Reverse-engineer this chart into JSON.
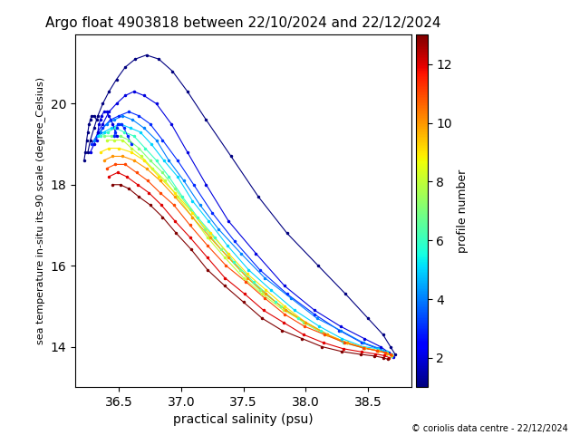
{
  "title": "Argo float 4903818 between 22/10/2024 and 22/12/2024",
  "xlabel": "practical salinity (psu)",
  "ylabel": "sea temperature in-situ its-90 scale (degree_Celsius)",
  "colorbar_label": "profile number",
  "colorbar_ticks": [
    2,
    4,
    6,
    8,
    10,
    12
  ],
  "n_profiles": 13,
  "cmap": "jet",
  "vmin": 1,
  "vmax": 13,
  "xlim": [
    36.15,
    38.85
  ],
  "ylim": [
    13.0,
    21.7
  ],
  "xticks": [
    36.5,
    37.0,
    37.5,
    38.0,
    38.5
  ],
  "yticks": [
    14,
    16,
    18,
    20
  ],
  "copyright": "© coriolis data centre - 22/12/2024",
  "profiles": [
    {
      "num": 1,
      "sal": [
        36.25,
        36.27,
        36.3,
        36.33,
        36.37,
        36.42,
        36.48,
        36.55,
        36.63,
        36.72,
        36.82,
        36.93,
        37.05,
        37.2,
        37.4,
        37.62,
        37.85,
        38.1,
        38.32,
        38.5,
        38.62,
        38.68,
        38.72
      ],
      "temp": [
        18.8,
        19.1,
        19.4,
        19.7,
        20.0,
        20.3,
        20.6,
        20.9,
        21.1,
        21.2,
        21.1,
        20.8,
        20.3,
        19.6,
        18.7,
        17.7,
        16.8,
        16.0,
        15.3,
        14.7,
        14.3,
        14.0,
        13.8
      ]
    },
    {
      "num": 2,
      "sal": [
        36.27,
        36.3,
        36.33,
        36.37,
        36.42,
        36.48,
        36.55,
        36.62,
        36.7,
        36.8,
        36.92,
        37.05,
        37.2,
        37.38,
        37.6,
        37.83,
        38.07,
        38.28,
        38.47,
        38.6,
        38.67,
        38.7
      ],
      "temp": [
        18.8,
        19.0,
        19.3,
        19.5,
        19.8,
        20.0,
        20.2,
        20.3,
        20.2,
        20.0,
        19.5,
        18.8,
        18.0,
        17.1,
        16.3,
        15.5,
        14.9,
        14.5,
        14.2,
        14.0,
        13.85,
        13.75
      ]
    },
    {
      "num": 3,
      "sal": [
        36.28,
        36.32,
        36.37,
        36.43,
        36.5,
        36.58,
        36.66,
        36.75,
        36.85,
        36.97,
        37.1,
        37.25,
        37.43,
        37.63,
        37.85,
        38.07,
        38.27,
        38.45,
        38.58,
        38.65,
        38.69
      ],
      "temp": [
        19.0,
        19.2,
        19.4,
        19.6,
        19.7,
        19.8,
        19.7,
        19.5,
        19.1,
        18.6,
        18.0,
        17.3,
        16.6,
        15.9,
        15.3,
        14.8,
        14.4,
        14.1,
        13.95,
        13.85,
        13.78
      ]
    },
    {
      "num": 4,
      "sal": [
        36.3,
        36.35,
        36.4,
        36.46,
        36.53,
        36.61,
        36.7,
        36.8,
        36.9,
        37.02,
        37.15,
        37.3,
        37.48,
        37.67,
        37.88,
        38.09,
        38.28,
        38.46,
        38.58,
        38.65,
        38.69
      ],
      "temp": [
        19.1,
        19.3,
        19.5,
        19.6,
        19.7,
        19.6,
        19.4,
        19.1,
        18.6,
        18.1,
        17.5,
        16.9,
        16.3,
        15.7,
        15.2,
        14.7,
        14.4,
        14.1,
        13.97,
        13.88,
        13.8
      ]
    },
    {
      "num": 5,
      "sal": [
        36.33,
        36.38,
        36.44,
        36.51,
        36.59,
        36.67,
        36.76,
        36.86,
        36.97,
        37.09,
        37.22,
        37.37,
        37.54,
        37.72,
        37.91,
        38.11,
        38.29,
        38.46,
        38.58,
        38.65,
        38.69
      ],
      "temp": [
        19.2,
        19.3,
        19.4,
        19.5,
        19.4,
        19.3,
        19.0,
        18.6,
        18.2,
        17.6,
        17.1,
        16.5,
        15.9,
        15.4,
        14.9,
        14.5,
        14.2,
        14.0,
        13.95,
        13.87,
        13.8
      ]
    },
    {
      "num": 6,
      "sal": [
        36.35,
        36.41,
        36.47,
        36.54,
        36.62,
        36.71,
        36.8,
        36.9,
        37.01,
        37.13,
        37.27,
        37.42,
        37.58,
        37.76,
        37.94,
        38.12,
        38.3,
        38.46,
        38.58,
        38.65,
        38.69
      ],
      "temp": [
        19.2,
        19.3,
        19.4,
        19.3,
        19.2,
        18.9,
        18.6,
        18.2,
        17.7,
        17.2,
        16.7,
        16.1,
        15.6,
        15.1,
        14.7,
        14.4,
        14.1,
        13.97,
        13.9,
        13.83,
        13.77
      ]
    },
    {
      "num": 7,
      "sal": [
        36.38,
        36.44,
        36.51,
        36.58,
        36.66,
        36.75,
        36.85,
        36.95,
        37.07,
        37.19,
        37.32,
        37.47,
        37.63,
        37.8,
        37.98,
        38.15,
        38.32,
        38.47,
        38.58,
        38.65,
        38.69
      ],
      "temp": [
        19.2,
        19.2,
        19.2,
        19.1,
        18.9,
        18.6,
        18.3,
        17.9,
        17.4,
        16.9,
        16.4,
        15.9,
        15.4,
        15.0,
        14.6,
        14.3,
        14.1,
        13.97,
        13.9,
        13.84,
        13.78
      ]
    },
    {
      "num": 8,
      "sal": [
        36.4,
        36.46,
        36.53,
        36.6,
        36.68,
        36.77,
        36.87,
        36.97,
        37.09,
        37.21,
        37.35,
        37.5,
        37.65,
        37.82,
        38.0,
        38.17,
        38.33,
        38.47,
        38.58,
        38.65,
        38.69
      ],
      "temp": [
        19.1,
        19.1,
        19.1,
        18.9,
        18.7,
        18.4,
        18.1,
        17.7,
        17.2,
        16.7,
        16.2,
        15.7,
        15.3,
        14.9,
        14.6,
        14.3,
        14.1,
        13.97,
        13.9,
        13.84,
        13.78
      ]
    },
    {
      "num": 9,
      "sal": [
        36.35,
        36.42,
        36.5,
        36.6,
        36.7,
        36.82,
        36.95,
        37.09,
        37.23,
        37.38,
        37.53,
        37.68,
        37.83,
        38.0,
        38.17,
        38.33,
        38.47,
        38.58,
        38.65,
        38.69
      ],
      "temp": [
        18.8,
        18.9,
        18.9,
        18.8,
        18.6,
        18.2,
        17.8,
        17.3,
        16.8,
        16.3,
        15.8,
        15.4,
        15.0,
        14.6,
        14.3,
        14.1,
        13.97,
        13.9,
        13.84,
        13.78
      ]
    },
    {
      "num": 10,
      "sal": [
        36.38,
        36.45,
        36.53,
        36.62,
        36.72,
        36.83,
        36.95,
        37.09,
        37.23,
        37.38,
        37.53,
        37.68,
        37.84,
        38.0,
        38.17,
        38.33,
        38.47,
        38.58,
        38.65,
        38.69
      ],
      "temp": [
        18.6,
        18.7,
        18.7,
        18.6,
        18.4,
        18.1,
        17.7,
        17.2,
        16.7,
        16.2,
        15.7,
        15.3,
        14.9,
        14.6,
        14.3,
        14.1,
        13.97,
        13.9,
        13.84,
        13.78
      ]
    },
    {
      "num": 11,
      "sal": [
        36.4,
        36.47,
        36.55,
        36.64,
        36.73,
        36.83,
        36.94,
        37.07,
        37.21,
        37.36,
        37.52,
        37.67,
        37.83,
        37.99,
        38.15,
        38.31,
        38.46,
        38.57,
        38.64,
        38.68
      ],
      "temp": [
        18.4,
        18.5,
        18.5,
        18.3,
        18.1,
        17.8,
        17.5,
        17.0,
        16.5,
        16.0,
        15.6,
        15.2,
        14.8,
        14.5,
        14.3,
        14.1,
        13.97,
        13.9,
        13.85,
        13.8
      ]
    },
    {
      "num": 12,
      "sal": [
        36.42,
        36.49,
        36.56,
        36.65,
        36.74,
        36.84,
        36.95,
        37.07,
        37.21,
        37.35,
        37.51,
        37.66,
        37.82,
        37.98,
        38.14,
        38.3,
        38.45,
        38.56,
        38.63,
        38.67
      ],
      "temp": [
        18.2,
        18.3,
        18.2,
        18.0,
        17.8,
        17.5,
        17.1,
        16.7,
        16.2,
        15.7,
        15.3,
        14.9,
        14.6,
        14.3,
        14.1,
        13.95,
        13.87,
        13.82,
        13.78,
        13.73
      ]
    },
    {
      "num": 13,
      "sal": [
        36.45,
        36.51,
        36.58,
        36.66,
        36.75,
        36.85,
        36.96,
        37.08,
        37.21,
        37.35,
        37.5,
        37.65,
        37.81,
        37.97,
        38.13,
        38.29,
        38.44,
        38.55,
        38.62,
        38.66
      ],
      "temp": [
        18.0,
        18.0,
        17.9,
        17.7,
        17.5,
        17.2,
        16.8,
        16.4,
        15.9,
        15.5,
        15.1,
        14.7,
        14.4,
        14.2,
        14.0,
        13.88,
        13.81,
        13.77,
        13.73,
        13.69
      ]
    }
  ],
  "special_profiles": [
    {
      "num": 1,
      "sal": [
        36.22,
        36.23,
        36.24,
        36.25,
        36.26,
        36.27,
        36.28,
        36.3,
        36.32
      ],
      "temp": [
        18.6,
        18.8,
        19.1,
        19.3,
        19.5,
        19.6,
        19.7,
        19.7,
        19.6
      ]
    },
    {
      "num": 2,
      "sal": [
        36.32,
        36.33,
        36.34,
        36.35,
        36.36,
        36.38,
        36.4,
        36.42,
        36.45,
        36.48
      ],
      "temp": [
        19.1,
        19.3,
        19.5,
        19.6,
        19.7,
        19.8,
        19.8,
        19.7,
        19.5,
        19.2
      ]
    },
    {
      "num": 3,
      "sal": [
        36.46,
        36.47,
        36.48,
        36.49,
        36.5,
        36.52,
        36.54,
        36.57,
        36.6
      ],
      "temp": [
        19.2,
        19.3,
        19.4,
        19.5,
        19.5,
        19.5,
        19.4,
        19.2,
        19.0
      ]
    }
  ]
}
